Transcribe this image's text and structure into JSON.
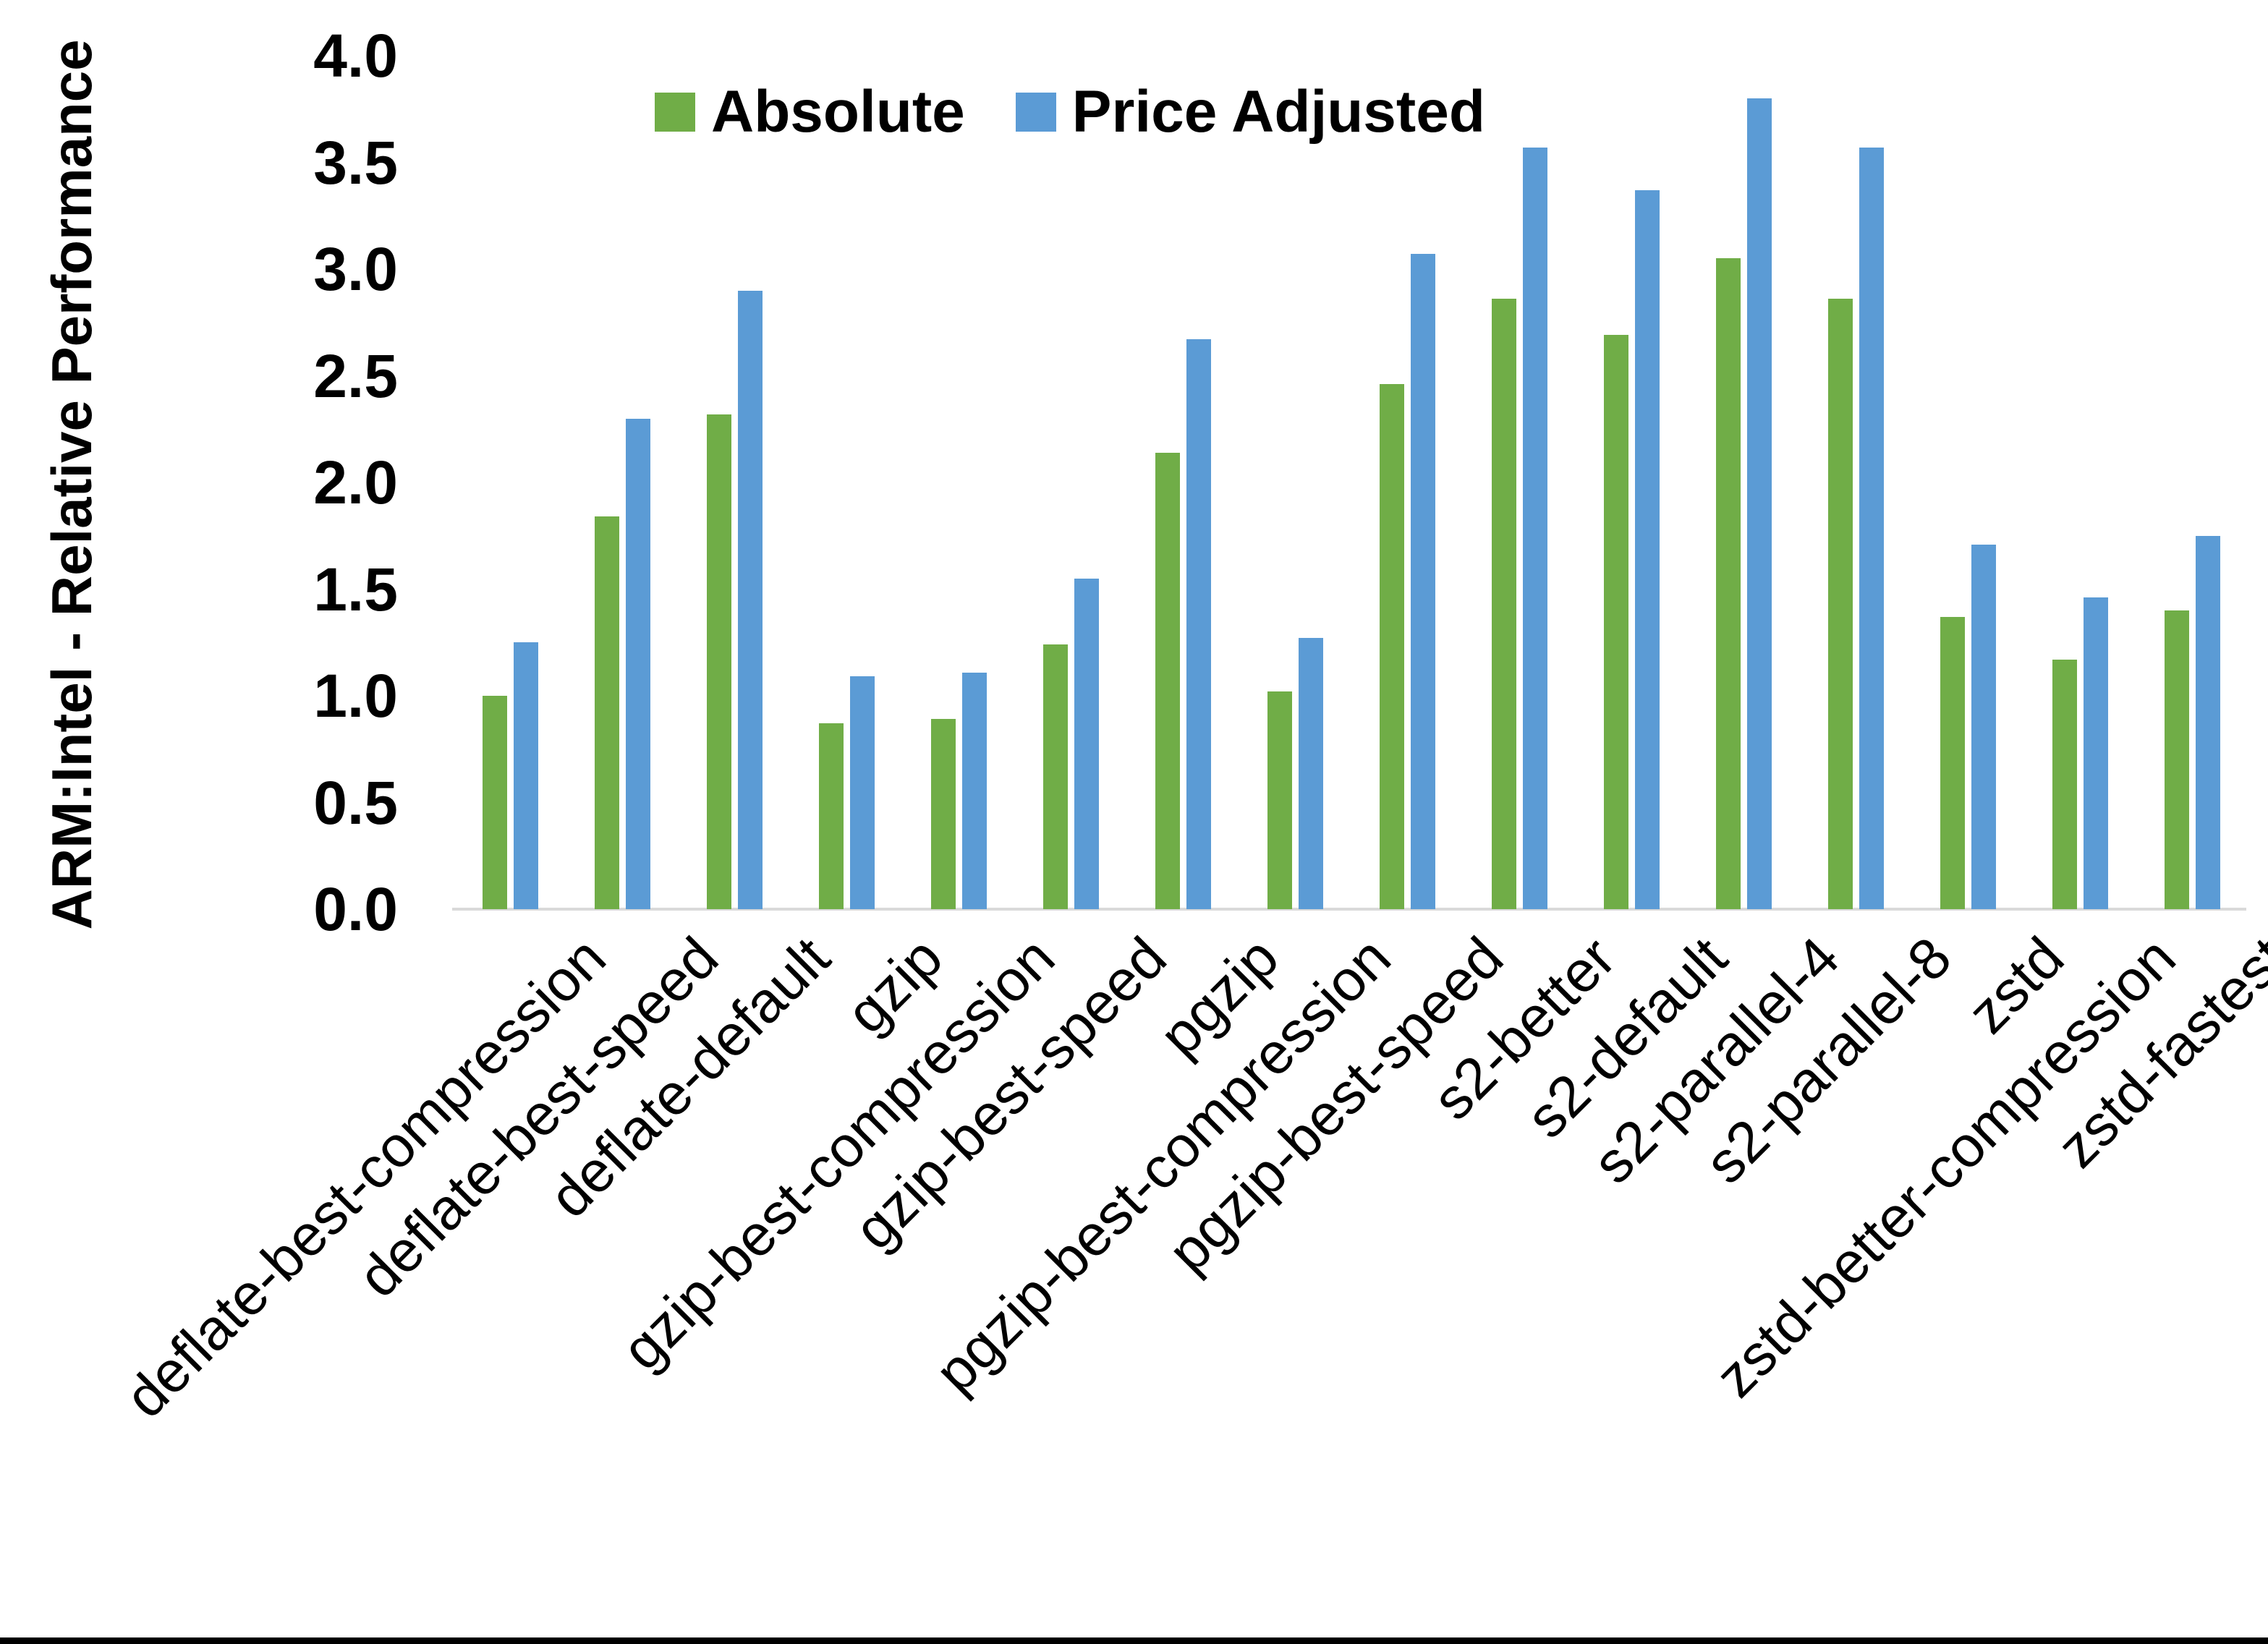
{
  "chart_data": {
    "type": "bar",
    "title": "",
    "ylabel": "ARM:Intel - Relative Performance",
    "xlabel": "",
    "categories": [
      "deflate-best-compression",
      "deflate-best-speed",
      "deflate-default",
      "gzip",
      "gzip-best-compression",
      "gzip-best-speed",
      "pgzip",
      "pgzip-best-compression",
      "pgzip-best-speed",
      "s2-better",
      "s2-default",
      "s2-parallel-4",
      "s2-parallel-8",
      "zstd",
      "zstd-better-compression",
      "zstd-fastest"
    ],
    "series": [
      {
        "name": "Absolute",
        "color": "#70AD47",
        "values": [
          1.0,
          1.84,
          2.32,
          0.87,
          0.89,
          1.24,
          2.14,
          1.02,
          2.46,
          2.86,
          2.69,
          3.05,
          2.86,
          1.37,
          1.17,
          1.4
        ]
      },
      {
        "name": "Price Adjusted",
        "color": "#5B9BD5",
        "values": [
          1.25,
          2.3,
          2.9,
          1.09,
          1.11,
          1.55,
          2.67,
          1.27,
          3.07,
          3.57,
          3.37,
          3.8,
          3.57,
          1.71,
          1.46,
          1.75
        ]
      }
    ],
    "ylim": [
      0.0,
      4.0
    ],
    "ytick_step": 0.5,
    "yticks": [
      "0.0",
      "0.5",
      "1.0",
      "1.5",
      "2.0",
      "2.5",
      "3.0",
      "3.5",
      "4.0"
    ],
    "grid": false,
    "legend_position": "top-center",
    "axis_line_color": "#D9D9D9",
    "x_label_rotation_deg": -45
  }
}
